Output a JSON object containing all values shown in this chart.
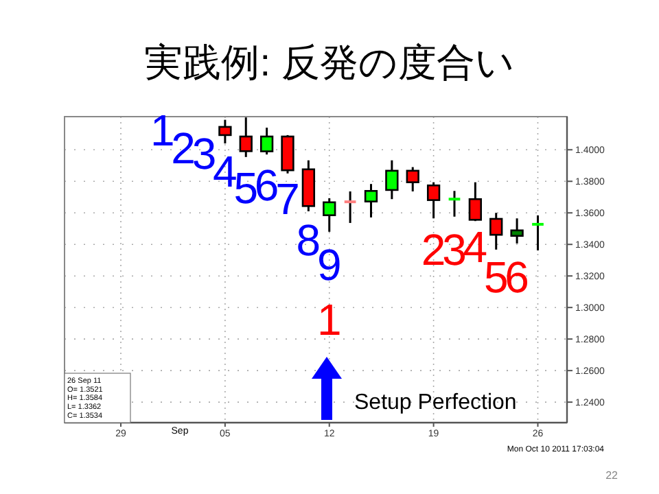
{
  "chart_data": {
    "type": "candlestick",
    "title": "実践例: 反発の度合い",
    "categories": [
      null,
      "29",
      null,
      null,
      null,
      null,
      "05",
      null,
      null,
      null,
      null,
      "12",
      null,
      null,
      null,
      null,
      "19",
      null,
      null,
      null,
      null,
      "26"
    ],
    "ohlc": [
      null,
      null,
      null,
      null,
      null,
      null,
      [
        1.4145,
        1.419,
        1.404,
        1.4093
      ],
      [
        1.4084,
        1.4205,
        1.3954,
        1.3991
      ],
      [
        1.399,
        1.414,
        1.397,
        1.4084
      ],
      [
        1.4084,
        1.4093,
        1.385,
        1.387
      ],
      [
        1.3876,
        1.3933,
        1.361,
        1.3643
      ],
      [
        1.3585,
        1.3693,
        1.348,
        1.3667
      ],
      [
        1.367,
        1.3736,
        1.3536,
        1.367
      ],
      [
        1.3672,
        1.3783,
        1.3571,
        1.3739
      ],
      [
        1.3745,
        1.3933,
        1.3687,
        1.3867
      ],
      [
        1.3867,
        1.389,
        1.3736,
        1.3794
      ],
      [
        1.3774,
        1.3794,
        1.3565,
        1.3681
      ],
      [
        1.3687,
        1.3739,
        1.3576,
        1.3687
      ],
      [
        1.3687,
        1.3794,
        1.3548,
        1.3556
      ],
      [
        1.3562,
        1.36,
        1.3367,
        1.3461
      ],
      [
        1.3454,
        1.3565,
        1.3406,
        1.3489
      ],
      [
        1.3521,
        1.3584,
        1.3362,
        1.3534
      ]
    ],
    "colors": [
      null,
      null,
      null,
      null,
      null,
      null,
      "#ff0000",
      "#ff0000",
      "#00ff00",
      "#ff0000",
      "#ff0000",
      "#00ff00",
      "#ff8080",
      "#00ff00",
      "#00ff00",
      "#ff0000",
      "#ff0000",
      "#00ff00",
      "#ff0000",
      "#ff0000",
      "#008000",
      "#00ff00"
    ],
    "ylim": [
      1.227,
      1.421
    ],
    "yticks": [
      {
        "value": 1.24,
        "label": "1.2400"
      },
      {
        "value": 1.26,
        "label": "1.2600"
      },
      {
        "value": 1.28,
        "label": "1.2800"
      },
      {
        "value": 1.3,
        "label": "1.3000"
      },
      {
        "value": 1.32,
        "label": "1.3200"
      },
      {
        "value": 1.34,
        "label": "1.3400"
      },
      {
        "value": 1.36,
        "label": "1.3600"
      },
      {
        "value": 1.38,
        "label": "1.3800"
      },
      {
        "value": 1.4,
        "label": "1.4000"
      }
    ],
    "grid": true,
    "annotations": [
      "Sep",
      "26 Sep 11\nO= 1.3521\nH= 1.3584\nL= 1.3362\nC= 1.3534",
      "Setup Perfection",
      "Mon Oct 10 2011 17:03:04",
      "22",
      "1",
      "2",
      "3",
      "4",
      "5",
      "6",
      "7",
      "8",
      "9",
      "1",
      "2",
      "3",
      "4",
      "5",
      "6"
    ]
  }
}
